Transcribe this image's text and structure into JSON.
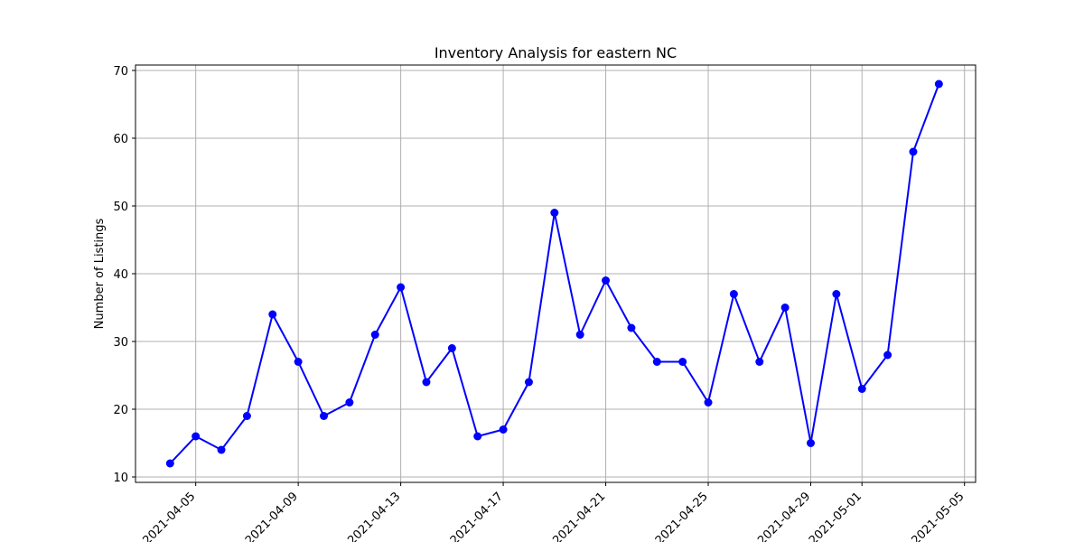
{
  "chart_data": {
    "type": "line",
    "title": "Inventory Analysis for eastern NC",
    "xlabel": "",
    "ylabel": "Number of Listings",
    "x": [
      "2021-04-04",
      "2021-04-05",
      "2021-04-06",
      "2021-04-07",
      "2021-04-08",
      "2021-04-09",
      "2021-04-10",
      "2021-04-11",
      "2021-04-12",
      "2021-04-13",
      "2021-04-14",
      "2021-04-15",
      "2021-04-16",
      "2021-04-17",
      "2021-04-18",
      "2021-04-19",
      "2021-04-20",
      "2021-04-21",
      "2021-04-22",
      "2021-04-23",
      "2021-04-24",
      "2021-04-25",
      "2021-04-26",
      "2021-04-27",
      "2021-04-28",
      "2021-04-29",
      "2021-04-30",
      "2021-05-01",
      "2021-05-02",
      "2021-05-03",
      "2021-05-04"
    ],
    "series": [
      {
        "color": "#0000ff",
        "marker": "circle",
        "values": [
          12,
          16,
          14,
          19,
          34,
          27,
          19,
          21,
          31,
          38,
          24,
          29,
          16,
          17,
          24,
          49,
          31,
          39,
          32,
          27,
          27,
          21,
          37,
          27,
          35,
          15,
          37,
          23,
          28,
          58,
          68
        ]
      }
    ],
    "xticks": [
      "2021-04-05",
      "2021-04-09",
      "2021-04-13",
      "2021-04-17",
      "2021-04-21",
      "2021-04-25",
      "2021-04-29",
      "2021-05-01",
      "2021-05-05"
    ],
    "yticks": [
      10,
      20,
      30,
      40,
      50,
      60,
      70
    ],
    "xlim": [
      "2021-04-02 15:36",
      "2021-05-05 10:24"
    ],
    "ylim": [
      9.2,
      70.8
    ],
    "grid": true,
    "legend": "none",
    "colors": {
      "line": "#0000ff",
      "grid": "#b0b0b0",
      "axes": "#000000"
    }
  }
}
